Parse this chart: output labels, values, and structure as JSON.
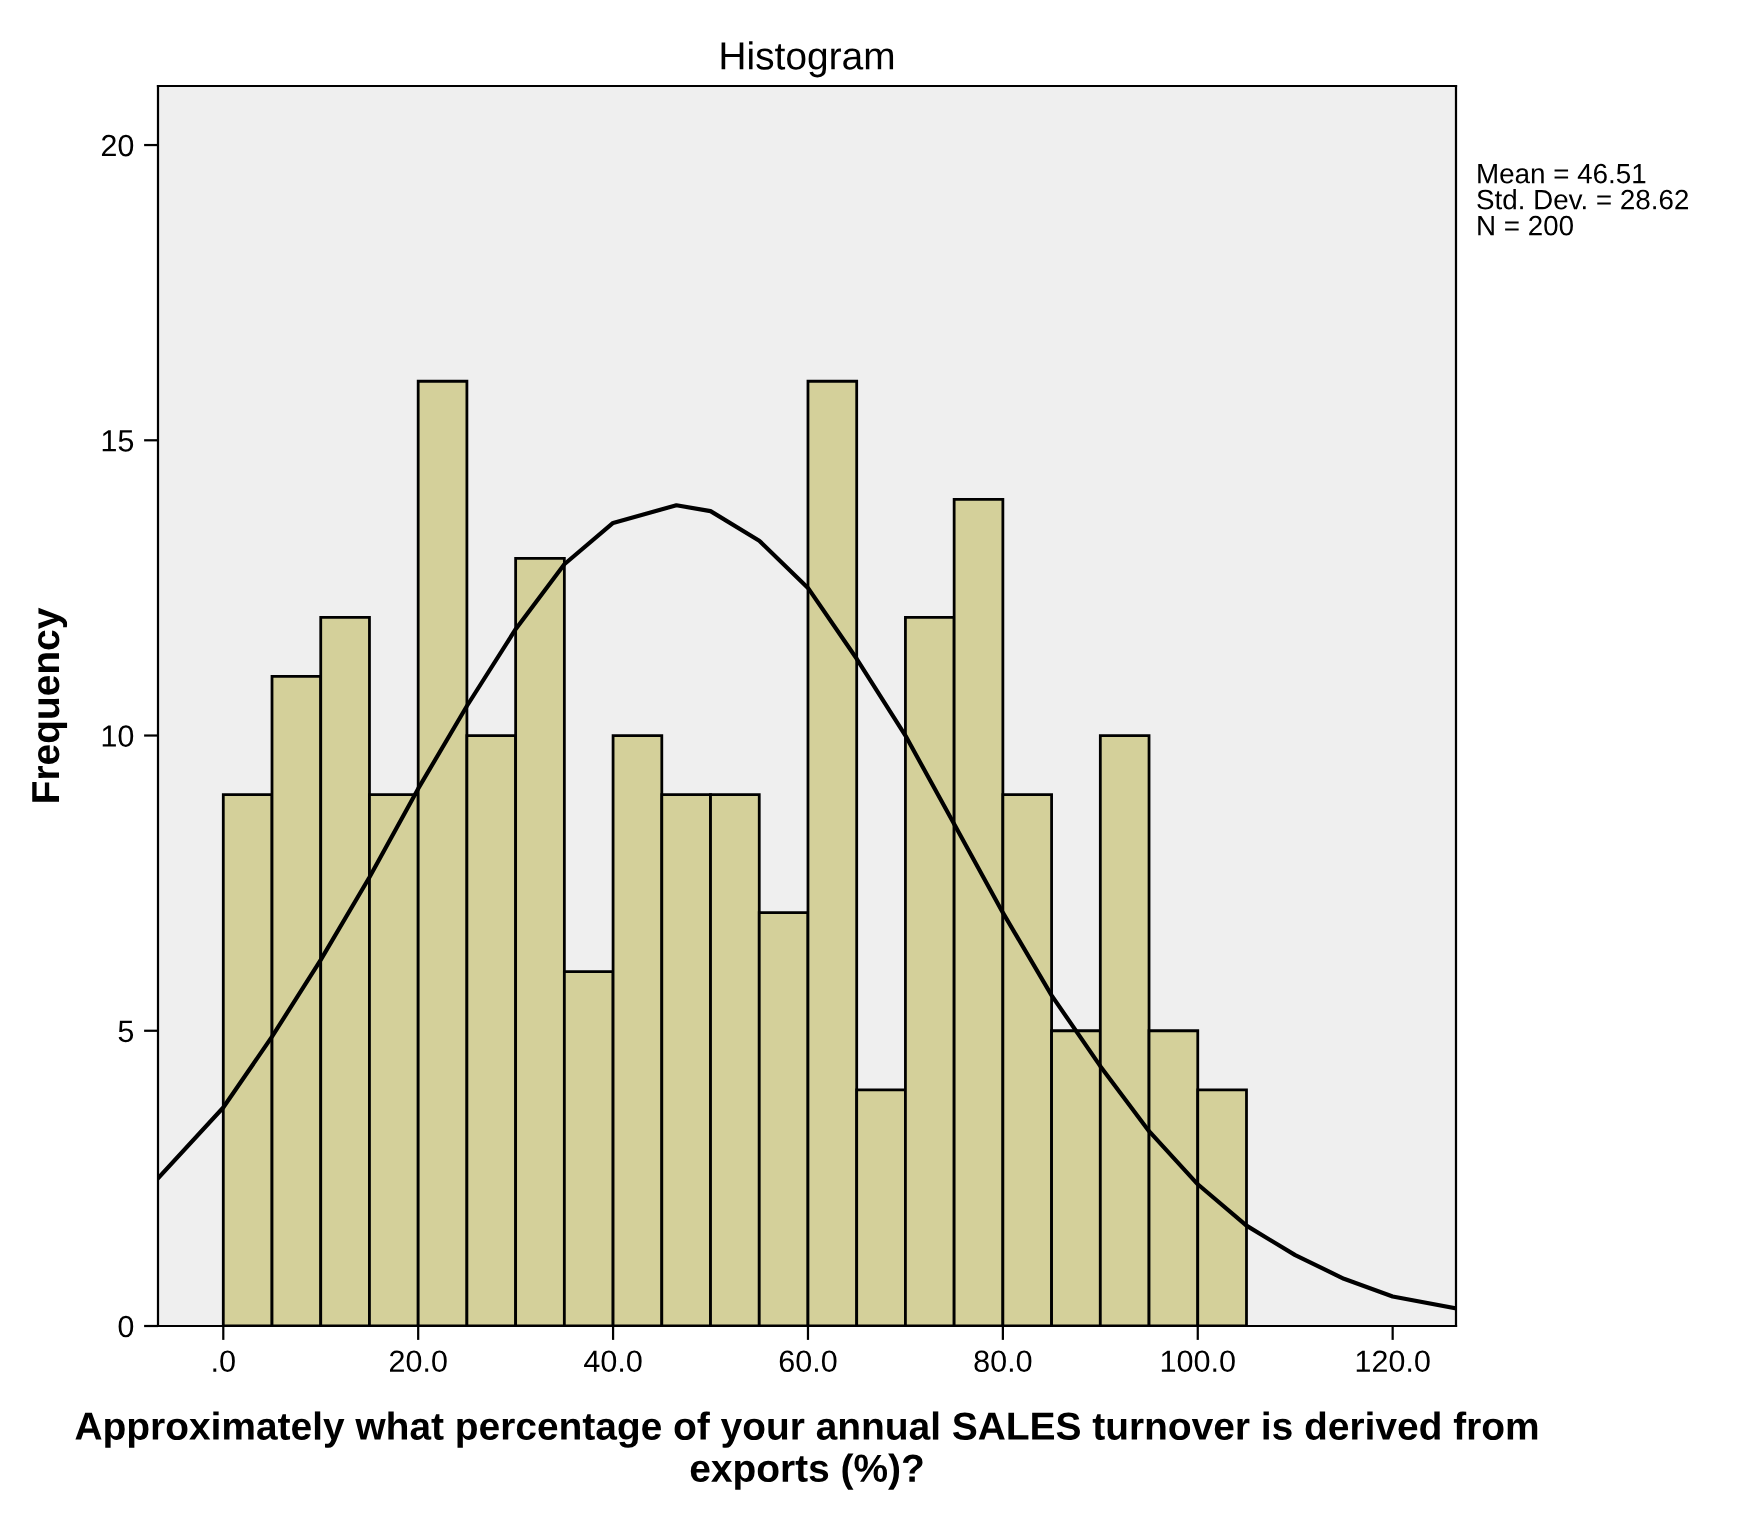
{
  "chart_data": {
    "type": "histogram",
    "title": "Histogram",
    "xlabel": "Approximately what percentage of your annual SALES turnover is derived from exports (%)?",
    "ylabel": "Frequency",
    "series": [
      {
        "color": "#d4d09a",
        "bins": [
          0,
          5,
          10,
          15,
          20,
          25,
          30,
          35,
          40,
          45,
          50,
          55,
          60,
          65,
          70,
          75,
          80,
          85,
          90,
          95,
          100,
          105
        ],
        "values": [
          9,
          11,
          12,
          9,
          16,
          10,
          13,
          6,
          10,
          9,
          9,
          7,
          16,
          4,
          12,
          14,
          9,
          5,
          10,
          5,
          4
        ]
      },
      {
        "type": "line",
        "color": "#000000",
        "x": [
          -6.7,
          0,
          5,
          10,
          15,
          20,
          25,
          30,
          35,
          40,
          46.5,
          50,
          55,
          60,
          65,
          70,
          75,
          80,
          85,
          90,
          95,
          100,
          105,
          110,
          115,
          120,
          126.5
        ],
        "values": [
          2.5,
          3.7,
          4.9,
          6.2,
          7.6,
          9.1,
          10.5,
          11.8,
          12.9,
          13.6,
          13.9,
          13.8,
          13.3,
          12.5,
          11.3,
          10.0,
          8.5,
          7.0,
          5.6,
          4.4,
          3.3,
          2.4,
          1.7,
          1.2,
          0.8,
          0.5,
          0.3
        ]
      }
    ],
    "xlim": [
      -6.7,
      126.5
    ],
    "ylim": [
      0,
      21
    ],
    "xticks": [
      {
        "value": 0,
        "label": ".0"
      },
      {
        "value": 20,
        "label": "20.0"
      },
      {
        "value": 40,
        "label": "40.0"
      },
      {
        "value": 60,
        "label": "60.0"
      },
      {
        "value": 80,
        "label": "80.0"
      },
      {
        "value": 100,
        "label": "100.0"
      },
      {
        "value": 120,
        "label": "120.0"
      }
    ],
    "yticks": [
      0,
      5,
      10,
      15,
      20
    ],
    "annotations": [
      "Mean = 46.51",
      "Std. Dev. = 28.62",
      "N = 200"
    ]
  }
}
